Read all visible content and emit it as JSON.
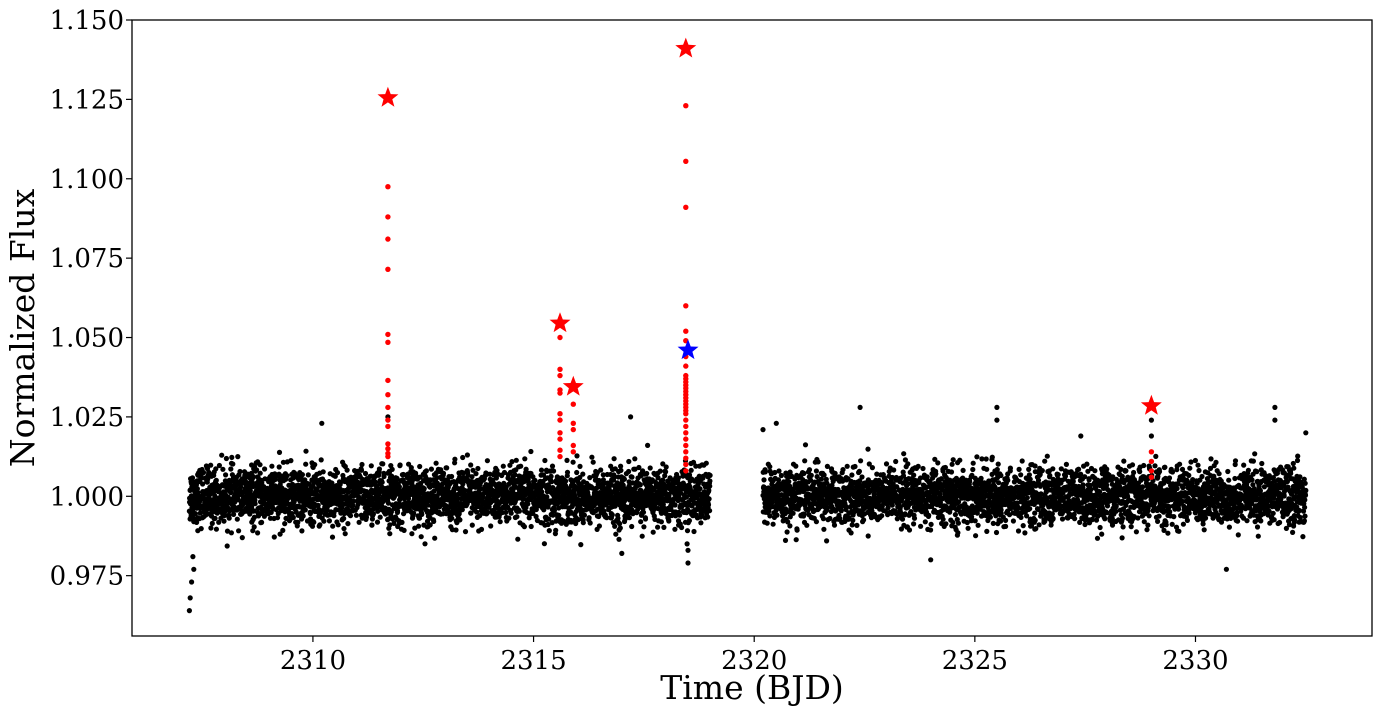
{
  "chart_data": {
    "type": "scatter",
    "title": "",
    "xlabel": "Time (BJD)",
    "ylabel": "Normalized Flux",
    "xlim": [
      2305.9,
      2334.0
    ],
    "ylim": [
      0.956,
      1.15
    ],
    "x_ticks": [
      2310,
      2315,
      2320,
      2325,
      2330
    ],
    "y_ticks": [
      0.975,
      1.0,
      1.025,
      1.05,
      1.075,
      1.1,
      1.125,
      1.15
    ],
    "x_tick_labels": [
      "2310",
      "2315",
      "2320",
      "2325",
      "2330"
    ],
    "y_tick_labels": [
      "0.975",
      "1.000",
      "1.025",
      "1.050",
      "1.075",
      "1.100",
      "1.125",
      "1.150"
    ],
    "grid": false,
    "legend": "none",
    "colors": {
      "baseline": "#000000",
      "flare": "#ff0000",
      "flare_peak": "#ff0000",
      "special_peak": "#0000ff"
    },
    "baseline_segments": [
      {
        "x_start": 2307.2,
        "x_end": 2319.0,
        "center": 1.0,
        "scatter_sd": 0.0045
      },
      {
        "x_start": 2320.2,
        "x_end": 2332.5,
        "center": 1.0,
        "scatter_sd": 0.0045
      }
    ],
    "baseline_outliers": {
      "x": [
        2307.2,
        2307.22,
        2307.25,
        2307.3,
        2307.28,
        2310.2,
        2311.7,
        2313.5,
        2317.2,
        2317.0,
        2318.5,
        2318.5,
        2318.48,
        2320.2,
        2320.5,
        2322.4,
        2324.0,
        2325.5,
        2325.5,
        2327.4,
        2329.0,
        2329.0,
        2330.7,
        2331.8,
        2331.8,
        2332.5
      ],
      "y": [
        0.964,
        0.968,
        0.973,
        0.977,
        0.981,
        1.023,
        1.025,
        1.013,
        1.025,
        0.982,
        0.979,
        0.983,
        0.985,
        1.021,
        1.023,
        1.028,
        0.98,
        1.028,
        1.024,
        1.019,
        1.024,
        1.019,
        0.977,
        1.028,
        1.024,
        1.02
      ]
    },
    "series": [
      {
        "role": "flare points",
        "x": [
          2311.7,
          2311.7,
          2311.7,
          2311.7,
          2311.7,
          2311.7,
          2311.7,
          2311.7,
          2311.7,
          2311.7,
          2311.7,
          2311.7,
          2311.7,
          2311.7,
          2311.7,
          2315.6,
          2315.6,
          2315.6,
          2315.6,
          2315.6,
          2315.6,
          2315.6,
          2315.6,
          2315.6,
          2315.6,
          2315.6,
          2315.9,
          2315.9,
          2315.9,
          2315.9,
          2315.9,
          2318.45,
          2318.45,
          2318.45,
          2318.45,
          2318.45,
          2318.45,
          2318.45,
          2318.45,
          2318.45,
          2318.45,
          2318.45,
          2318.45,
          2318.45,
          2318.45,
          2318.45,
          2318.45,
          2318.45,
          2318.45,
          2318.45,
          2318.45,
          2318.45,
          2318.45,
          2318.45,
          2318.45,
          2318.45,
          2318.45,
          2318.45,
          2318.45,
          2318.45,
          2318.45,
          2329.0,
          2329.0,
          2329.0,
          2329.0
        ],
        "y": [
          1.0975,
          1.088,
          1.081,
          1.0715,
          1.051,
          1.0485,
          1.0365,
          1.032,
          1.028,
          1.024,
          1.022,
          1.0165,
          1.015,
          1.0135,
          1.0125,
          1.05,
          1.04,
          1.038,
          1.0335,
          1.0325,
          1.026,
          1.024,
          1.02,
          1.018,
          1.0145,
          1.0125,
          1.029,
          1.023,
          1.021,
          1.016,
          1.014,
          1.123,
          1.1055,
          1.091,
          1.06,
          1.052,
          1.049,
          1.044,
          1.041,
          1.038,
          1.036,
          1.034,
          1.032,
          1.03,
          1.028,
          1.026,
          1.024,
          1.022,
          1.02,
          1.018,
          1.016,
          1.014,
          1.012,
          1.01,
          1.008,
          1.037,
          1.035,
          1.033,
          1.031,
          1.029,
          1.027,
          1.014,
          1.011,
          1.008,
          1.006
        ]
      },
      {
        "role": "flare peaks",
        "marker": "star",
        "x": [
          2311.7,
          2315.6,
          2315.9,
          2318.45,
          2329.0
        ],
        "y": [
          1.1255,
          1.0545,
          1.0345,
          1.141,
          1.0285
        ]
      },
      {
        "role": "highlighted peak",
        "marker": "star",
        "x": [
          2318.5
        ],
        "y": [
          1.046
        ]
      }
    ]
  }
}
